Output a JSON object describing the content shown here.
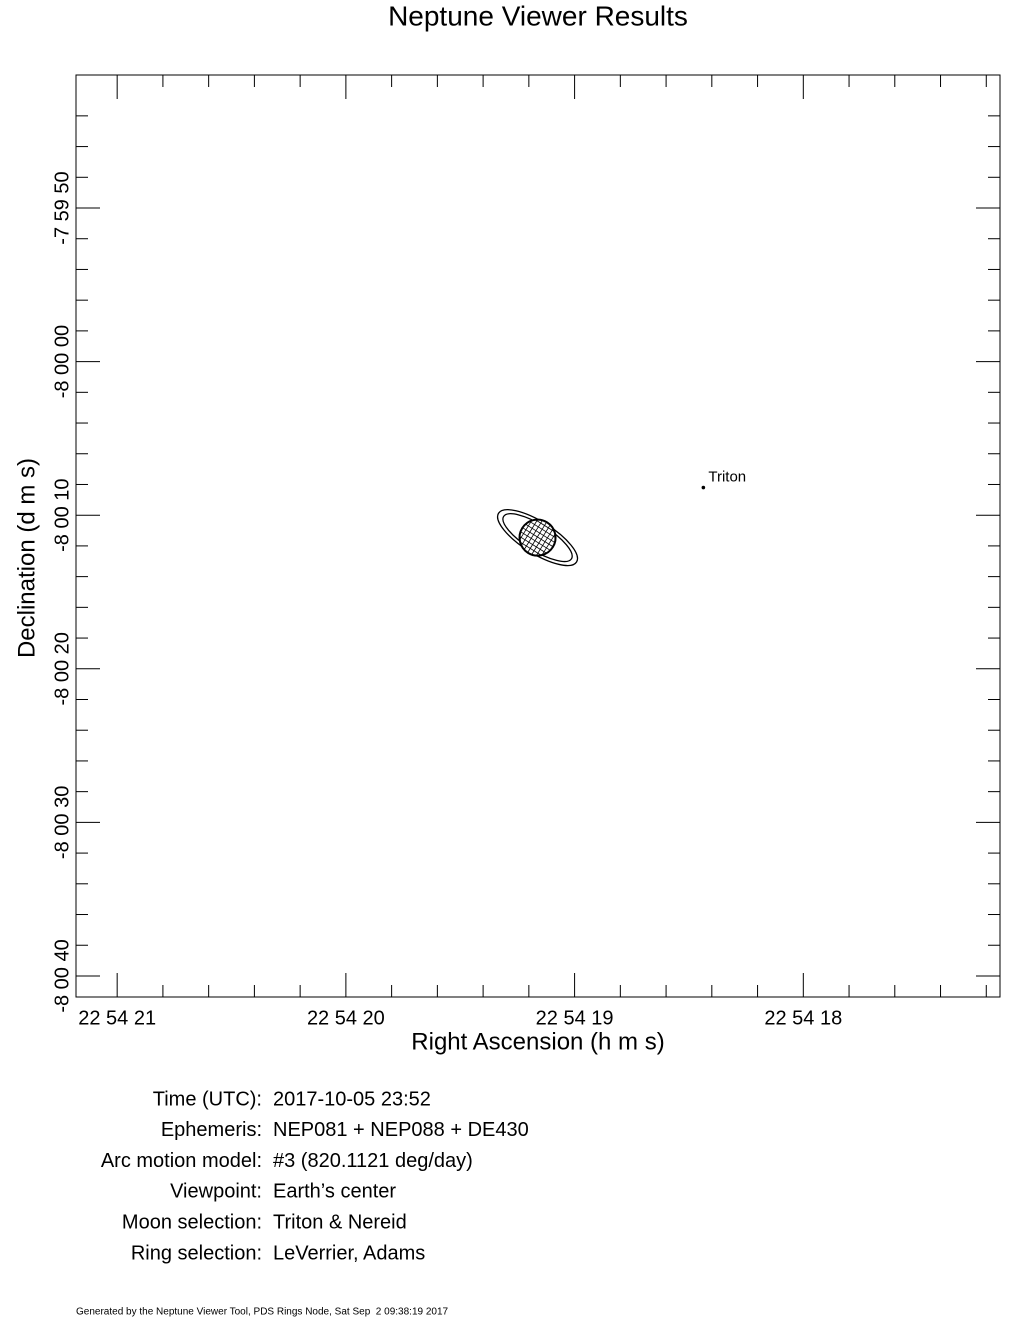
{
  "chart_data": {
    "type": "scatter",
    "title": "Neptune Viewer Results",
    "x_label": "Right Ascension (h m s)",
    "y_label": "Declination (d m s)",
    "xlim": [
      21.18,
      17.14
    ],
    "ylim": [
      -41.37,
      18.66
    ],
    "xticks": [
      {
        "value": 21,
        "label": "22 54 21"
      },
      {
        "value": 20,
        "label": "22 54 20"
      },
      {
        "value": 19,
        "label": "22 54 19"
      },
      {
        "value": 18,
        "label": "22 54 18"
      }
    ],
    "yticks": [
      {
        "value": 10,
        "label": "-7 59 50"
      },
      {
        "value": 0,
        "label": "-8 00 00"
      },
      {
        "value": -10,
        "label": "-8 00 10"
      },
      {
        "value": -20,
        "label": "-8 00 20"
      },
      {
        "value": -30,
        "label": "-8 00 30"
      },
      {
        "value": -40,
        "label": "-8 00 40"
      }
    ],
    "xminorticks": [
      20.8,
      20.6,
      20.4,
      20.2,
      19.8,
      19.6,
      19.4,
      19.2,
      18.8,
      18.6,
      18.4,
      18.2,
      17.8,
      17.6,
      17.4,
      17.2
    ],
    "yminorticks": [
      16,
      14,
      12,
      8,
      6,
      4,
      2,
      -2,
      -4,
      -6,
      -8,
      -12,
      -14,
      -16,
      -18,
      -22,
      -24,
      -26,
      -28,
      -32,
      -34,
      -36,
      -38
    ],
    "x": [
      19.162,
      18.437
    ],
    "values": [
      -11.46,
      -8.2
    ],
    "labels": [
      null,
      "Triton"
    ]
  },
  "info": [
    [
      "Time (UTC):",
      "2017-10-05 23:52"
    ],
    [
      "Ephemeris:",
      "NEP081 + NEP088 + DE430"
    ],
    [
      "Arc motion model:",
      "#3 (820.1121 deg/day)"
    ],
    [
      "Viewpoint:",
      "Earth’s center"
    ],
    [
      "Moon selection:",
      "Triton & Nereid"
    ],
    [
      "Ring selection:",
      "LeVerrier, Adams"
    ]
  ],
  "footer": "Generated by the Neptune Viewer Tool, PDS Rings Node, Sat Sep  2 09:38:19 2017"
}
